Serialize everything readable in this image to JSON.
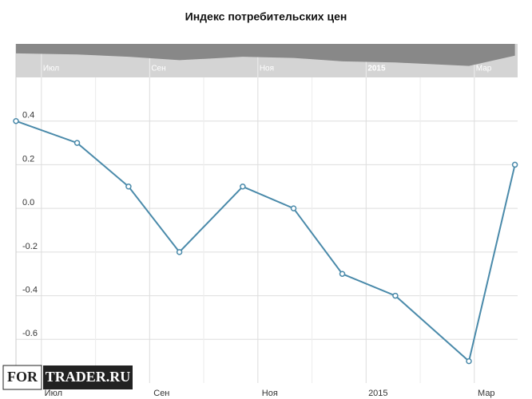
{
  "chart_data": {
    "type": "line",
    "title": "Индекс потребительских цен",
    "x": [
      6.53,
      7.66,
      8.61,
      9.55,
      10.72,
      11.66,
      12.56,
      13.54,
      14.9,
      15.75
    ],
    "series": [
      {
        "color": "#4a8aaa",
        "values": [
          0.4,
          0.3,
          0.1,
          -0.2,
          0.1,
          0,
          -0.3,
          -0.4,
          -0.7,
          0.2
        ]
      }
    ],
    "xlim": [
      6.53,
      15.8
    ],
    "xticks": [
      {
        "value": 7,
        "label": "Июл"
      },
      {
        "value": 9,
        "label": "Сен"
      },
      {
        "value": 11,
        "label": "Ноя"
      },
      {
        "value": 13,
        "label": "2015"
      },
      {
        "value": 15,
        "label": "Мар"
      }
    ],
    "ylim": [
      -0.8,
      0.6
    ],
    "yticks": [
      0.4,
      0.2,
      {
        "value": 0,
        "label": "0.0"
      },
      -0.2,
      -0.4,
      -0.6
    ],
    "grid": true,
    "watermark": [
      "FOR",
      "TRADER.RU"
    ]
  }
}
